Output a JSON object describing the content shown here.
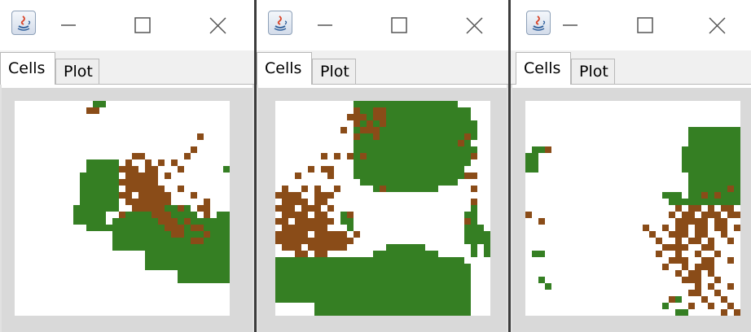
{
  "colors": {
    "green": "#357f23",
    "brown": "#8a4c18",
    "empty": "#ffffff",
    "panel": "#d9d9d9"
  },
  "windows": [
    {
      "tabs": [
        {
          "label": "Cells",
          "selected": true
        },
        {
          "label": "Plot",
          "selected": false
        }
      ],
      "controls": {
        "minimize": "minimize-icon",
        "maximize": "maximize-icon",
        "close": "close-icon"
      },
      "grid_size": 33,
      "green_rects": [
        [
          12,
          0,
          2,
          1
        ],
        [
          11,
          9,
          5,
          1
        ],
        [
          11,
          10,
          5,
          1
        ],
        [
          10,
          11,
          6,
          6
        ],
        [
          9,
          16,
          5,
          3
        ],
        [
          11,
          19,
          4,
          1
        ],
        [
          15,
          18,
          18,
          5
        ],
        [
          17,
          17,
          11,
          1
        ],
        [
          19,
          16,
          8,
          1
        ],
        [
          20,
          23,
          13,
          3
        ],
        [
          25,
          26,
          8,
          2
        ],
        [
          32,
          18,
          1,
          5
        ],
        [
          32,
          10,
          1,
          1
        ],
        [
          31,
          17,
          2,
          1
        ]
      ],
      "brown_rects": [
        [
          11,
          1,
          2,
          1
        ],
        [
          28,
          5,
          1,
          1
        ],
        [
          27,
          7,
          1,
          1
        ],
        [
          26,
          8,
          1,
          1
        ],
        [
          18,
          8,
          2,
          1
        ],
        [
          17,
          9,
          1,
          1
        ],
        [
          20,
          9,
          1,
          1
        ],
        [
          22,
          9,
          1,
          1
        ],
        [
          24,
          9,
          1,
          1
        ],
        [
          16,
          10,
          3,
          1
        ],
        [
          20,
          10,
          2,
          1
        ],
        [
          25,
          10,
          1,
          1
        ],
        [
          17,
          11,
          5,
          1
        ],
        [
          23,
          11,
          1,
          1
        ],
        [
          16,
          12,
          3,
          1
        ],
        [
          19,
          12,
          3,
          1
        ],
        [
          17,
          13,
          6,
          1
        ],
        [
          25,
          13,
          1,
          1
        ],
        [
          16,
          14,
          2,
          1
        ],
        [
          19,
          14,
          5,
          1
        ],
        [
          27,
          14,
          1,
          1
        ],
        [
          17,
          15,
          7,
          1
        ],
        [
          29,
          15,
          1,
          1
        ],
        [
          18,
          16,
          5,
          1
        ],
        [
          25,
          16,
          1,
          1
        ],
        [
          28,
          16,
          2,
          1
        ],
        [
          21,
          17,
          3,
          1
        ],
        [
          29,
          17,
          1,
          1
        ],
        [
          22,
          18,
          3,
          1
        ],
        [
          26,
          18,
          1,
          1
        ],
        [
          23,
          19,
          3,
          1
        ],
        [
          27,
          19,
          2,
          1
        ],
        [
          24,
          20,
          2,
          1
        ],
        [
          29,
          20,
          1,
          1
        ],
        [
          27,
          21,
          2,
          1
        ],
        [
          16,
          17,
          1,
          1
        ]
      ]
    },
    {
      "tabs": [
        {
          "label": "Cells",
          "selected": true
        },
        {
          "label": "Plot",
          "selected": false
        }
      ],
      "controls": {
        "minimize": "minimize-icon",
        "maximize": "maximize-icon",
        "close": "close-icon"
      },
      "grid_size": 33,
      "green_rects": [
        [
          12,
          0,
          16,
          1
        ],
        [
          12,
          1,
          18,
          2
        ],
        [
          12,
          3,
          19,
          3
        ],
        [
          12,
          6,
          18,
          4
        ],
        [
          12,
          10,
          17,
          2
        ],
        [
          13,
          12,
          15,
          1
        ],
        [
          15,
          13,
          10,
          1
        ],
        [
          29,
          7,
          2,
          2
        ],
        [
          10,
          17,
          2,
          2
        ],
        [
          11,
          19,
          1,
          1
        ],
        [
          29,
          17,
          1,
          5
        ],
        [
          30,
          16,
          1,
          8
        ],
        [
          31,
          19,
          1,
          3
        ],
        [
          32,
          20,
          1,
          4
        ],
        [
          0,
          25,
          3,
          5
        ],
        [
          1,
          24,
          4,
          1
        ],
        [
          0,
          24,
          14,
          1
        ],
        [
          0,
          25,
          30,
          6
        ],
        [
          6,
          31,
          24,
          2
        ],
        [
          14,
          24,
          15,
          1
        ],
        [
          15,
          23,
          10,
          1
        ],
        [
          17,
          22,
          6,
          1
        ],
        [
          27,
          24,
          2,
          1
        ]
      ],
      "brown_rects": [
        [
          12,
          1,
          1,
          1
        ],
        [
          15,
          1,
          2,
          1
        ],
        [
          11,
          2,
          2,
          1
        ],
        [
          13,
          2,
          1,
          1
        ],
        [
          15,
          2,
          2,
          1
        ],
        [
          12,
          3,
          1,
          1
        ],
        [
          14,
          3,
          1,
          1
        ],
        [
          16,
          3,
          1,
          1
        ],
        [
          10,
          4,
          1,
          1
        ],
        [
          13,
          4,
          3,
          1
        ],
        [
          12,
          5,
          1,
          1
        ],
        [
          15,
          5,
          1,
          1
        ],
        [
          29,
          5,
          1,
          1
        ],
        [
          28,
          6,
          1,
          1
        ],
        [
          30,
          8,
          1,
          1
        ],
        [
          7,
          8,
          1,
          1
        ],
        [
          9,
          8,
          1,
          1
        ],
        [
          11,
          8,
          1,
          1
        ],
        [
          13,
          8,
          1,
          1
        ],
        [
          5,
          10,
          1,
          1
        ],
        [
          7,
          10,
          2,
          1
        ],
        [
          3,
          11,
          1,
          1
        ],
        [
          8,
          11,
          1,
          1
        ],
        [
          29,
          11,
          2,
          1
        ],
        [
          1,
          13,
          1,
          1
        ],
        [
          4,
          13,
          1,
          1
        ],
        [
          6,
          13,
          1,
          1
        ],
        [
          9,
          13,
          1,
          1
        ],
        [
          16,
          13,
          1,
          1
        ],
        [
          30,
          13,
          1,
          1
        ],
        [
          0,
          14,
          4,
          1
        ],
        [
          6,
          14,
          3,
          1
        ],
        [
          1,
          15,
          4,
          1
        ],
        [
          6,
          15,
          2,
          1
        ],
        [
          30,
          15,
          1,
          1
        ],
        [
          0,
          16,
          3,
          1
        ],
        [
          4,
          16,
          3,
          1
        ],
        [
          8,
          16,
          1,
          1
        ],
        [
          1,
          17,
          4,
          1
        ],
        [
          6,
          17,
          2,
          1
        ],
        [
          11,
          17,
          1,
          1
        ],
        [
          0,
          18,
          2,
          1
        ],
        [
          3,
          18,
          6,
          1
        ],
        [
          29,
          18,
          1,
          1
        ],
        [
          1,
          19,
          7,
          1
        ],
        [
          0,
          20,
          5,
          1
        ],
        [
          6,
          20,
          5,
          1
        ],
        [
          12,
          20,
          1,
          1
        ],
        [
          0,
          21,
          12,
          1
        ],
        [
          1,
          22,
          3,
          1
        ],
        [
          5,
          22,
          6,
          1
        ],
        [
          3,
          23,
          2,
          1
        ],
        [
          6,
          23,
          2,
          1
        ]
      ]
    },
    {
      "tabs": [
        {
          "label": "Cells",
          "selected": true
        },
        {
          "label": "Plot",
          "selected": false
        }
      ],
      "controls": {
        "minimize": "minimize-icon",
        "maximize": "maximize-icon",
        "close": "close-icon"
      },
      "grid_size": 33,
      "green_rects": [
        [
          25,
          4,
          8,
          3
        ],
        [
          24,
          7,
          9,
          4
        ],
        [
          25,
          11,
          8,
          4
        ],
        [
          22,
          15,
          11,
          1
        ],
        [
          21,
          14,
          3,
          1
        ],
        [
          1,
          7,
          1,
          4
        ],
        [
          0,
          8,
          1,
          3
        ],
        [
          2,
          7,
          1,
          1
        ],
        [
          1,
          23,
          1,
          1
        ],
        [
          2,
          23,
          1,
          1
        ],
        [
          2,
          27,
          1,
          1
        ],
        [
          3,
          28,
          1,
          1
        ],
        [
          22,
          30,
          2,
          1
        ],
        [
          21,
          31,
          1,
          1
        ],
        [
          23,
          32,
          2,
          1
        ]
      ],
      "brown_rects": [
        [
          3,
          7,
          1,
          1
        ],
        [
          31,
          13,
          1,
          1
        ],
        [
          27,
          14,
          1,
          1
        ],
        [
          29,
          14,
          1,
          1
        ],
        [
          23,
          16,
          1,
          1
        ],
        [
          25,
          16,
          2,
          1
        ],
        [
          28,
          16,
          1,
          1
        ],
        [
          30,
          16,
          2,
          1
        ],
        [
          22,
          17,
          1,
          1
        ],
        [
          24,
          17,
          2,
          1
        ],
        [
          27,
          17,
          3,
          1
        ],
        [
          31,
          17,
          2,
          1
        ],
        [
          23,
          18,
          5,
          1
        ],
        [
          29,
          18,
          2,
          1
        ],
        [
          24,
          19,
          1,
          1
        ],
        [
          26,
          19,
          2,
          1
        ],
        [
          29,
          19,
          2,
          1
        ],
        [
          32,
          19,
          1,
          1
        ],
        [
          0,
          17,
          1,
          1
        ],
        [
          2,
          18,
          1,
          1
        ],
        [
          18,
          19,
          1,
          1
        ],
        [
          21,
          19,
          1,
          1
        ],
        [
          23,
          19,
          1,
          1
        ],
        [
          19,
          20,
          1,
          1
        ],
        [
          22,
          20,
          3,
          1
        ],
        [
          26,
          20,
          2,
          1
        ],
        [
          30,
          20,
          1,
          1
        ],
        [
          20,
          21,
          1,
          1
        ],
        [
          23,
          21,
          1,
          1
        ],
        [
          25,
          21,
          2,
          1
        ],
        [
          28,
          21,
          1,
          1
        ],
        [
          31,
          21,
          1,
          1
        ],
        [
          21,
          22,
          4,
          1
        ],
        [
          27,
          22,
          2,
          1
        ],
        [
          20,
          23,
          1,
          1
        ],
        [
          23,
          23,
          1,
          1
        ],
        [
          26,
          23,
          1,
          1
        ],
        [
          29,
          23,
          1,
          1
        ],
        [
          22,
          24,
          3,
          1
        ],
        [
          27,
          24,
          2,
          1
        ],
        [
          31,
          24,
          1,
          1
        ],
        [
          21,
          25,
          1,
          1
        ],
        [
          24,
          25,
          1,
          1
        ],
        [
          26,
          25,
          3,
          1
        ],
        [
          23,
          26,
          1,
          1
        ],
        [
          25,
          26,
          2,
          1
        ],
        [
          28,
          26,
          1,
          1
        ],
        [
          24,
          27,
          3,
          1
        ],
        [
          29,
          27,
          1,
          1
        ],
        [
          26,
          28,
          1,
          1
        ],
        [
          28,
          28,
          1,
          1
        ],
        [
          31,
          28,
          1,
          1
        ],
        [
          25,
          29,
          2,
          1
        ],
        [
          29,
          29,
          1,
          1
        ],
        [
          22,
          30,
          1,
          1
        ],
        [
          27,
          30,
          1,
          1
        ],
        [
          30,
          30,
          1,
          1
        ],
        [
          25,
          31,
          1,
          1
        ],
        [
          28,
          31,
          1,
          1
        ],
        [
          31,
          31,
          1,
          1
        ],
        [
          30,
          32,
          1,
          1
        ],
        [
          32,
          32,
          1,
          1
        ]
      ]
    }
  ]
}
